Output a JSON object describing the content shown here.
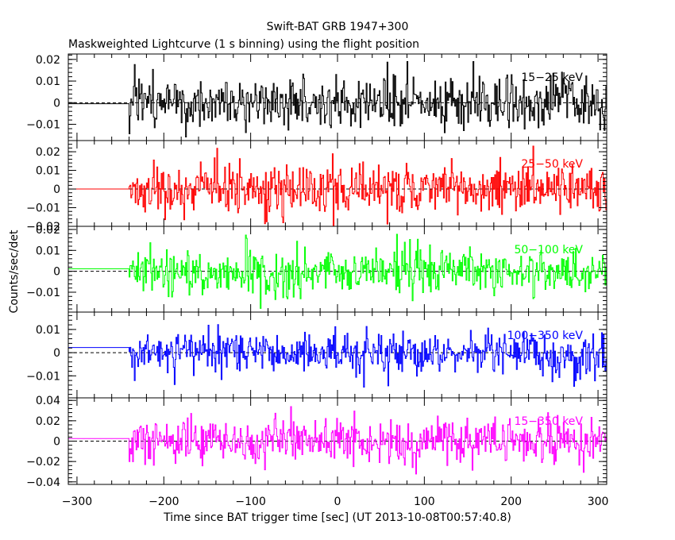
{
  "chart_data": {
    "type": "line",
    "title": "Swift-BAT GRB 1947+300",
    "subtitle": "Maskweighted Lightcurve (1 s binning) using the flight position",
    "xlabel": "Time since BAT trigger time [sec] (UT 2013-10-08T00:57:40.8)",
    "ylabel": "Counts/sec/det",
    "xlim": [
      -310,
      310
    ],
    "xticks": [
      -300,
      -200,
      -100,
      0,
      100,
      200,
      300
    ],
    "xtick_labels": [
      "−300",
      "−200",
      "−100",
      "0",
      "100",
      "200",
      "300"
    ],
    "time_binning_sec": 1,
    "panels": [
      {
        "name": "15-25 keV",
        "label": "15−25 keV",
        "color": "#000000",
        "ylim": [
          -0.0175,
          0.0225
        ],
        "yticks": [
          -0.01,
          0,
          0.01,
          0.02
        ],
        "ytick_labels": [
          "−0.01",
          "0",
          "0.01",
          "0.02"
        ],
        "pre_data_level": -0.0005,
        "data_start_sec": -240,
        "noise_amplitude": 0.006,
        "noise_extreme": 0.019
      },
      {
        "name": "25-50 keV",
        "label": "25−50 keV",
        "color": "#ff0000",
        "ylim": [
          -0.02,
          0.026
        ],
        "yticks": [
          -0.02,
          -0.01,
          0,
          0.01,
          0.02
        ],
        "ytick_labels": [
          "−0.02",
          "−0.01",
          "0",
          "0.01",
          "0.02"
        ],
        "pre_data_level": 0.0,
        "data_start_sec": -240,
        "noise_amplitude": 0.0065,
        "noise_extreme": 0.023
      },
      {
        "name": "50-100 keV",
        "label": "50−100 keV",
        "color": "#00ff00",
        "ylim": [
          -0.0195,
          0.0215
        ],
        "yticks": [
          -0.01,
          0,
          0.01,
          0.02
        ],
        "ytick_labels": [
          "−0.01",
          "0",
          "0.01",
          "0.02"
        ],
        "pre_data_level": 0.0012,
        "data_start_sec": -240,
        "noise_amplitude": 0.0055,
        "noise_extreme": 0.018
      },
      {
        "name": "100-350 keV",
        "label": "100−350 keV",
        "color": "#0000ff",
        "ylim": [
          -0.0195,
          0.0175
        ],
        "yticks": [
          -0.01,
          0,
          0.01
        ],
        "ytick_labels": [
          "−0.01",
          "0",
          "0.01"
        ],
        "pre_data_level": 0.0022,
        "data_start_sec": -240,
        "noise_amplitude": 0.0045,
        "noise_extreme": 0.015
      },
      {
        "name": "15-350 keV",
        "label": "15−350 keV",
        "color": "#ff00ff",
        "ylim": [
          -0.0425,
          0.0425
        ],
        "yticks": [
          -0.04,
          -0.02,
          0,
          0.02,
          0.04
        ],
        "ytick_labels": [
          "−0.04",
          "−0.02",
          "0",
          "0.02",
          "0.04"
        ],
        "pre_data_level": 0.0025,
        "data_start_sec": -240,
        "noise_amplitude": 0.011,
        "noise_extreme": 0.037
      }
    ]
  }
}
